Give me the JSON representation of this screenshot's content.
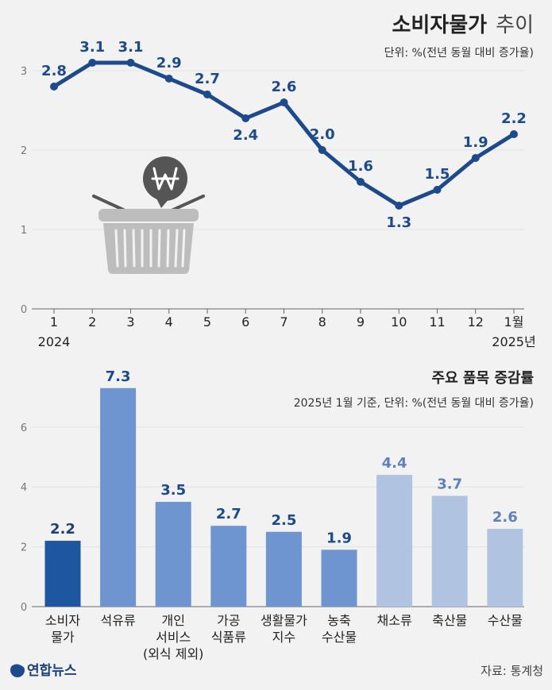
{
  "header": {
    "title_bold": "소비자물가",
    "title_light": "추이",
    "unit": "단위: %(전년 동월 대비 증가율)"
  },
  "chart_data": [
    {
      "type": "line",
      "title": "소비자물가 추이",
      "unit": "단위: %(전년 동월 대비 증가율)",
      "x": [
        "1",
        "2",
        "3",
        "4",
        "5",
        "6",
        "7",
        "8",
        "9",
        "10",
        "11",
        "12",
        "1월"
      ],
      "values": [
        2.8,
        3.1,
        3.1,
        2.9,
        2.7,
        2.4,
        2.6,
        2.0,
        1.6,
        1.3,
        1.5,
        1.9,
        2.2
      ],
      "labels": [
        "2.8",
        "3.1",
        "3.1",
        "2.9",
        "2.7",
        "2.4",
        "2.6",
        "2.0",
        "1.6",
        "1.3",
        "1.5",
        "1.9",
        "2.2"
      ],
      "year_labels": [
        "2024",
        "2025년"
      ],
      "yticks": [
        "0",
        "1",
        "2",
        "3"
      ],
      "ylim": [
        0,
        3
      ],
      "color": "#1d4a8c"
    },
    {
      "type": "bar",
      "title": "주요 품목 증감률",
      "subtitle": "2025년 1월 기준, 단위: %(전년 동월 대비 증가율)",
      "categories": [
        [
          "소비자",
          "물가"
        ],
        [
          "석유류"
        ],
        [
          "개인",
          "서비스",
          "(외식 제외)"
        ],
        [
          "가공",
          "식품류"
        ],
        [
          "생활물가",
          "지수"
        ],
        [
          "농축",
          "수산물"
        ],
        [
          "채소류"
        ],
        [
          "축산물"
        ],
        [
          "수산물"
        ]
      ],
      "values": [
        2.2,
        7.3,
        3.5,
        2.7,
        2.5,
        1.9,
        4.4,
        3.7,
        2.6
      ],
      "labels": [
        "2.2",
        "7.3",
        "3.5",
        "2.7",
        "2.5",
        "1.9",
        "4.4",
        "3.7",
        "2.6"
      ],
      "yticks": [
        "0",
        "2",
        "4",
        "6"
      ],
      "ylim": [
        0,
        8
      ],
      "colors": [
        "#1f56a0",
        "#6f95d0",
        "#6f95d0",
        "#6f95d0",
        "#6f95d0",
        "#6f95d0",
        "#b0c3e0",
        "#b0c3e0",
        "#b0c3e0"
      ],
      "label_colors": [
        "#1d3f7a",
        "#1d4a8c",
        "#1d4a8c",
        "#1d4a8c",
        "#1d4a8c",
        "#1d4a8c",
        "#5f82bd",
        "#5f82bd",
        "#5f82bd"
      ]
    }
  ],
  "footer": {
    "logo": "연합뉴스",
    "source": "자료: 통계청"
  },
  "colors": {
    "line": "#1d4a8c",
    "basket": "#b9b9b9",
    "bubble": "#555555"
  },
  "icons": [
    "won-speech-bubble-icon",
    "shopping-basket-icon",
    "yonhap-logo-icon"
  ]
}
